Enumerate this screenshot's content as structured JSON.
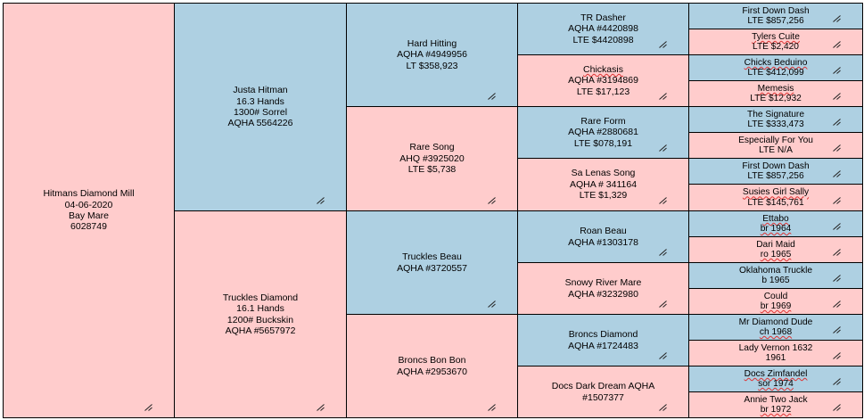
{
  "pedigree": {
    "gen1": [
      {
        "lines": [
          "Hitmans Diamond Mill",
          "04-06-2020",
          "Bay Mare",
          "6028749"
        ],
        "sex": "mare"
      }
    ],
    "gen2": [
      {
        "lines": [
          "Justa Hitman",
          "16.3 Hands",
          "1300# Sorrel",
          "AQHA 5564226"
        ],
        "sex": "sire"
      },
      {
        "lines": [
          "Truckles Diamond",
          "16.1 Hands",
          "1200# Buckskin",
          "AQHA #5657972"
        ],
        "sex": "dam"
      }
    ],
    "gen3": [
      {
        "lines": [
          "Hard Hitting",
          "AQHA #4949956",
          "LT $358,923"
        ],
        "sex": "sire"
      },
      {
        "lines": [
          "Rare Song",
          "AHQ #3925020",
          "LTE $5,738"
        ],
        "sex": "dam"
      },
      {
        "lines": [
          "Truckles Beau",
          "AQHA #3720557"
        ],
        "sex": "sire"
      },
      {
        "lines": [
          "Broncs Bon Bon",
          "AQHA #2953670"
        ],
        "sex": "dam"
      }
    ],
    "gen4": [
      {
        "lines": [
          "TR Dasher",
          "AQHA #4420898",
          "LTE $4420898"
        ],
        "sex": "sire",
        "underline": []
      },
      {
        "lines": [
          "Chickasis",
          "AQHA #3194869",
          "LTE $17,123"
        ],
        "sex": "dam",
        "underline": [
          0
        ]
      },
      {
        "lines": [
          "Rare Form",
          "AQHA #2880681",
          "LTE $078,191"
        ],
        "sex": "sire",
        "underline": []
      },
      {
        "lines": [
          "Sa Lenas Song",
          "AQHA # 341164",
          "LTE $1,329"
        ],
        "sex": "dam",
        "underline": []
      },
      {
        "lines": [
          "Roan Beau",
          "AQHA #1303178"
        ],
        "sex": "sire",
        "underline": []
      },
      {
        "lines": [
          "Snowy River Mare",
          "AQHA #3232980"
        ],
        "sex": "dam",
        "underline": []
      },
      {
        "lines": [
          "Broncs Diamond",
          "AQHA #1724483"
        ],
        "sex": "sire",
        "underline": []
      },
      {
        "lines": [
          "Docs Dark Dream AQHA",
          "#1507377"
        ],
        "sex": "dam",
        "underline": []
      }
    ],
    "gen5": [
      {
        "lines": [
          "First Down Dash",
          "LTE $857,256"
        ],
        "sex": "sire",
        "underline": []
      },
      {
        "lines": [
          "Tylers Cuite",
          "LTE $2,420"
        ],
        "sex": "dam",
        "underline": [
          0
        ]
      },
      {
        "lines": [
          "Chicks Beduino",
          "LTE $412,099"
        ],
        "sex": "sire",
        "underline": [
          0
        ]
      },
      {
        "lines": [
          "Memesis",
          "LTE $12,932"
        ],
        "sex": "dam",
        "underline": [
          0
        ]
      },
      {
        "lines": [
          "The Signature",
          "LTE $333,473"
        ],
        "sex": "sire",
        "underline": []
      },
      {
        "lines": [
          "Especially For You",
          "LTE N/A"
        ],
        "sex": "dam",
        "underline": []
      },
      {
        "lines": [
          "First Down Dash",
          "LTE $857,256"
        ],
        "sex": "sire",
        "underline": []
      },
      {
        "lines": [
          "Susies Girl Sally",
          "LTE $145,761"
        ],
        "sex": "dam",
        "underline": [
          0
        ]
      },
      {
        "lines": [
          "Ettabo",
          "br 1964"
        ],
        "sex": "sire",
        "underline": [
          0,
          1
        ]
      },
      {
        "lines": [
          "Dari Maid",
          "ro 1965"
        ],
        "sex": "dam",
        "underline": [
          1
        ]
      },
      {
        "lines": [
          "Oklahoma Truckle",
          "b 1965"
        ],
        "sex": "sire",
        "underline": []
      },
      {
        "lines": [
          "Could",
          "br 1969"
        ],
        "sex": "dam",
        "underline": [
          1
        ]
      },
      {
        "lines": [
          "Mr Diamond Dude",
          "ch 1968"
        ],
        "sex": "sire",
        "underline": [
          1
        ]
      },
      {
        "lines": [
          "Lady Vernon 1632",
          "1961"
        ],
        "sex": "dam",
        "underline": []
      },
      {
        "lines": [
          "Docs Zimfandel",
          "sor 1974"
        ],
        "sex": "sire",
        "underline": [
          0,
          1
        ]
      },
      {
        "lines": [
          "Annie Two Jack",
          "br 1972"
        ],
        "sex": "dam",
        "underline": [
          1
        ]
      }
    ]
  },
  "colors": {
    "sire": "#aed0e2",
    "dam": "#ffcccc",
    "mare": "#ffcccc",
    "border": "#000000"
  },
  "icons": {
    "resize": "resize-handle-icon"
  }
}
